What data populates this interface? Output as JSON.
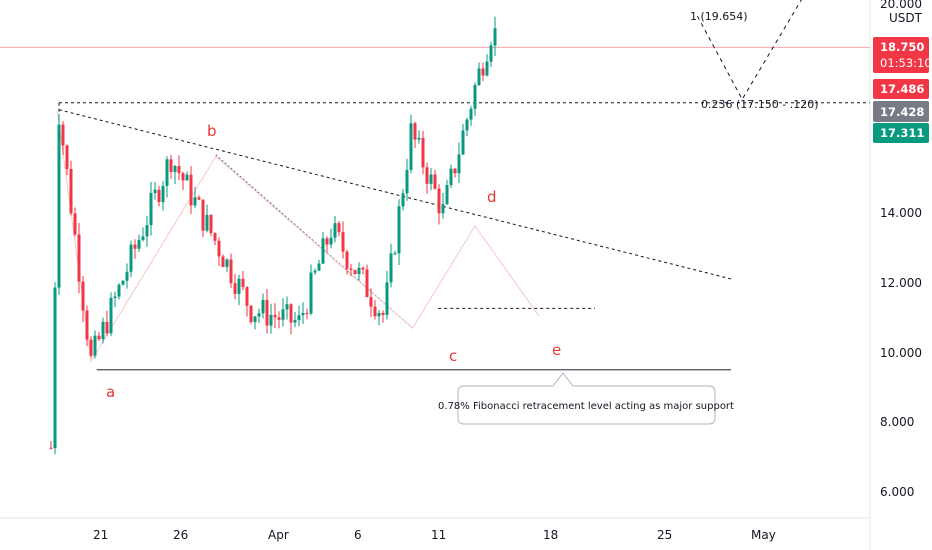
{
  "chart_data": {
    "type": "candlestick",
    "currency": "USDT",
    "y_axis_ticks": [
      "20.000",
      "14.000",
      "12.000",
      "10.000",
      "8.000",
      "6.000"
    ],
    "x_axis_ticks": [
      "21",
      "26",
      "Apr",
      "6",
      "11",
      "18",
      "25",
      "May"
    ],
    "ylim": [
      4.8,
      20.2
    ],
    "grid": false,
    "price_badges": [
      {
        "value": "18.750",
        "sub": "01:53:10",
        "color": "#f23645"
      },
      {
        "value": "17.486",
        "color": "#f23645"
      },
      {
        "value": "17.428",
        "color": "#787b86"
      },
      {
        "value": "17.311",
        "color": "#089981"
      }
    ],
    "wave_labels": [
      "a",
      "b",
      "c",
      "d",
      "e"
    ],
    "fib_labels": {
      "top": "1 (19.654)",
      "mid": "0.236 (17.150 - .120)"
    },
    "note": "0.78% Fibonacci retracement level acting as major support",
    "levels": {
      "support": 9.45,
      "resistance": 17.15,
      "current": 18.75,
      "range_low": 11.22
    },
    "trendline": {
      "start": 16.95,
      "end": 12.07
    },
    "wedge_upper": {
      "start": 15.65,
      "end": 10.65
    },
    "projection": [
      19.65,
      17.25,
      20.2
    ],
    "anchors": [
      [
        18.0,
        7.2
      ],
      [
        18.5,
        16.9
      ],
      [
        20.5,
        9.7
      ],
      [
        25.5,
        15.6
      ],
      [
        30.5,
        11.2
      ],
      [
        33.5,
        10.8
      ],
      [
        35.5,
        13.5
      ],
      [
        38.8,
        11.0
      ],
      [
        40.5,
        16.3
      ],
      [
        42.5,
        14.0
      ],
      [
        44.5,
        17.6
      ],
      [
        45.8,
        19.65
      ]
    ]
  }
}
